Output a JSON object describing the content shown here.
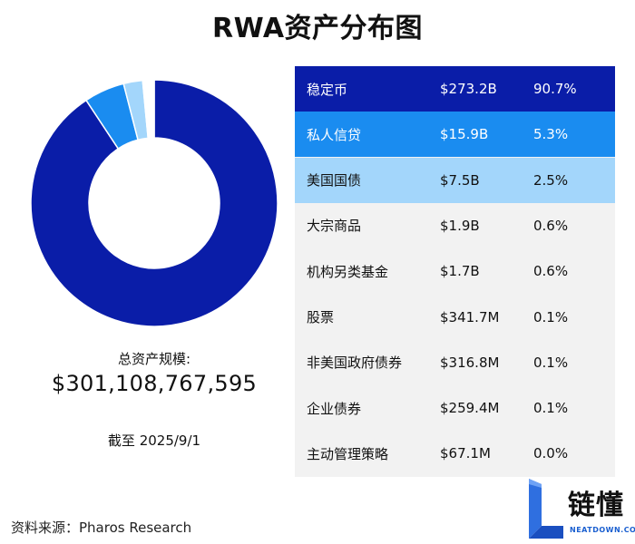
{
  "chart_data": {
    "type": "pie",
    "title": "RWA资产分布图",
    "categories": [
      "稳定币",
      "私人信贷",
      "美国国债",
      "大宗商品",
      "机构另类基金",
      "股票",
      "非美国政府债券",
      "企业债券",
      "主动管理策略"
    ],
    "values": [
      90.7,
      5.3,
      2.5,
      0.6,
      0.6,
      0.1,
      0.1,
      0.1,
      0.0
    ],
    "amounts": [
      "$273.2B",
      "$15.9B",
      "$7.5B",
      "$1.9B",
      "$1.7B",
      "$341.7M",
      "$316.8M",
      "$259.4M",
      "$67.1M"
    ],
    "percent_labels": [
      "90.7%",
      "5.3%",
      "2.5%",
      "0.6%",
      "0.6%",
      "0.1%",
      "0.1%",
      "0.1%",
      "0.0%"
    ],
    "colors": [
      "#0a1da8",
      "#1a8cf0",
      "#a3d6fb",
      "#f2f2f2",
      "#f2f2f2",
      "#f2f2f2",
      "#f2f2f2",
      "#f2f2f2",
      "#f2f2f2"
    ],
    "text_colors": [
      "#ffffff",
      "#ffffff",
      "#111111",
      "#111111",
      "#111111",
      "#111111",
      "#111111",
      "#111111",
      "#111111"
    ],
    "donut": true
  },
  "summary": {
    "total_label": "总资产规模:",
    "total_value": "$301,108,767,595",
    "as_of": "截至 2025/9/1"
  },
  "source": "资料来源：Pharos Research",
  "logo": {
    "text": "链懂",
    "subtext": "NEATDOWN.COM",
    "accent": "#1a5fd0"
  }
}
